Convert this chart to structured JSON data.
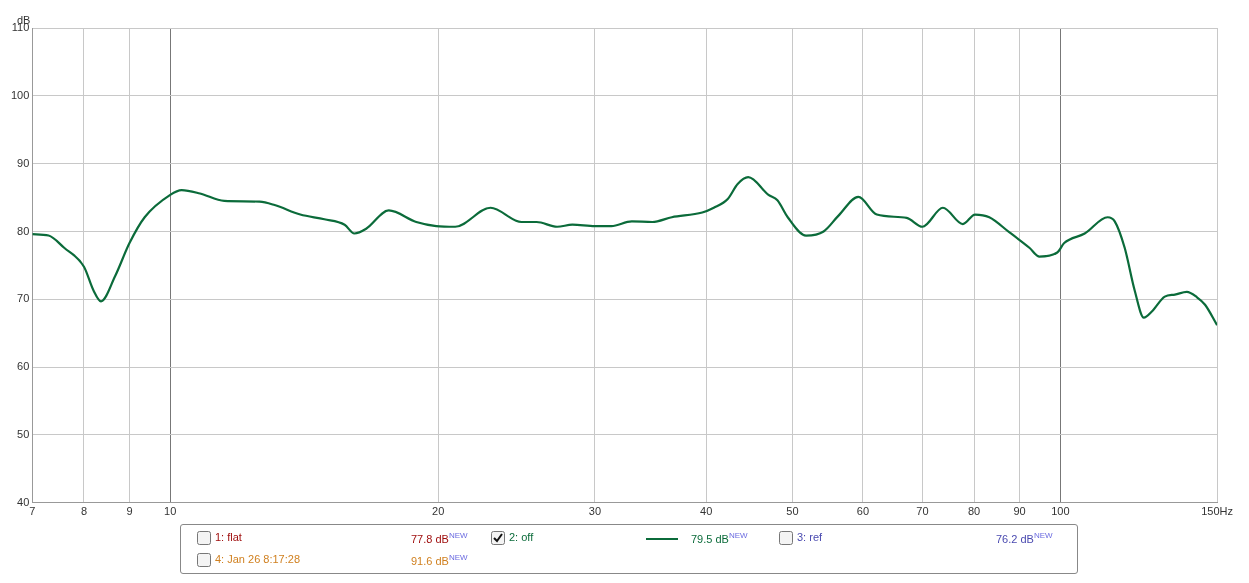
{
  "chart_data": {
    "type": "line",
    "ylabel": "dB",
    "log": "x",
    "grid": true,
    "legend": "bottom",
    "marker": "none",
    "line_style": "solid",
    "xlim": [
      7,
      150
    ],
    "xticks": [
      7,
      8,
      9,
      10,
      20,
      30,
      40,
      50,
      60,
      70,
      80,
      90,
      100,
      {
        "value": 150,
        "label": "150Hz"
      }
    ],
    "ylim": [
      40,
      110
    ],
    "yticks": [
      40,
      50,
      60,
      70,
      80,
      90,
      100,
      110
    ],
    "x": [
      7,
      7.3,
      7.6,
      8,
      8.2,
      8.36,
      8.67,
      9,
      9.36,
      10,
      10.3,
      10.8,
      11.5,
      12.6,
      13.1,
      14,
      14.9,
      15.7,
      16.1,
      16.6,
      17.6,
      18.9,
      19.9,
      20.9,
      22.9,
      24.8,
      25.8,
      27.2,
      28.3,
      30,
      31.3,
      33,
      34.8,
      36.6,
      39.6,
      40.8,
      42.3,
      43.4,
      44.6,
      47,
      48.1,
      49.4,
      51.8,
      54.2,
      56.3,
      59.3,
      62.2,
      67.2,
      70,
      73.8,
      77.7,
      80.2,
      83.2,
      87.6,
      92.3,
      94.7,
      99.2,
      101,
      106.5,
      113,
      115.1,
      118.1,
      121.2,
      124.1,
      126.7,
      131,
      134.5,
      138.7,
      142.4,
      145.4,
      150
    ],
    "series": [
      {
        "name": "2: off",
        "color": "#0b6b3a",
        "values": [
          79.6,
          79.4,
          77.6,
          74.8,
          71.3,
          69.7,
          73.4,
          78.3,
          82.1,
          85.4,
          86.1,
          85.6,
          84.5,
          84.4,
          83.9,
          82.5,
          81.8,
          81.0,
          79.7,
          80.4,
          83.1,
          81.4,
          80.8,
          80.7,
          83.5,
          81.4,
          81.4,
          80.7,
          81.0,
          80.8,
          80.8,
          81.5,
          81.4,
          82.1,
          82.8,
          83.5,
          84.8,
          87.0,
          88.0,
          85.4,
          84.6,
          82.1,
          79.4,
          80.0,
          82.3,
          85.1,
          82.5,
          82.0,
          80.7,
          83.5,
          81.1,
          82.5,
          82.1,
          79.9,
          77.6,
          76.3,
          76.9,
          78.3,
          79.7,
          82.1,
          81.5,
          77.6,
          71.3,
          67.3,
          68.2,
          70.4,
          70.7,
          71.1,
          70.3,
          69.2,
          66.2
        ]
      }
    ],
    "annotations": [
      "1: flat",
      "77.8 dB$^{NEW}$",
      "79.5 dB$^{NEW}$",
      "3: ref",
      "76.2 dB$^{NEW}$",
      "4: Jan 26 8:17:28",
      "91.6 dB$^{NEW}$"
    ]
  }
}
